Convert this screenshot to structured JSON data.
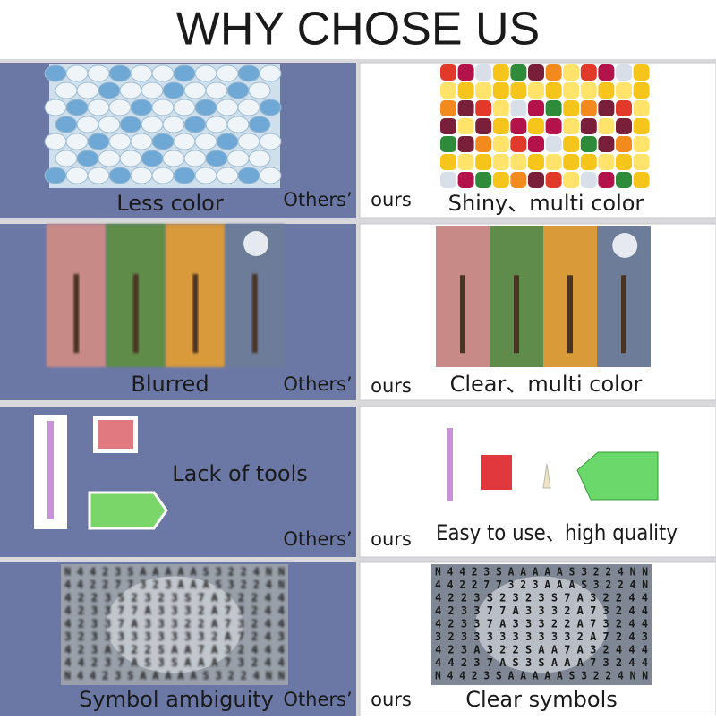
{
  "title": "WHY CHOSE US",
  "rows": [
    {
      "left_caption": "Less color",
      "others": "Others’",
      "ours": "ours",
      "right_caption": "Shiny、multi color"
    },
    {
      "left_caption": "Blurred",
      "others": "Others’",
      "ours": "ours",
      "right_caption": "Clear、multi color"
    },
    {
      "left_caption": "Lack of tools",
      "others": "Others’",
      "ours": "ours",
      "right_caption": "Easy to use、high quality"
    },
    {
      "left_caption": "Symbol ambiguity",
      "others": "Others’",
      "ours": "ours",
      "right_caption": "Clear symbols"
    }
  ],
  "symbol_rows": [
    "N 4 4 2 3 S A A A A A S 3 2 2 4 N N",
    "4 4 2 2 7 7 3 2 3 A A A S 3 2 2 4 N",
    "4 2 2 3 S 2 3 2 3 S 7 A 3 2 2 4 4",
    "4 2 3 3 7 7 A 3 3 3 2 A 7 3 2 4 4",
    "4 2 3 3 7 A 3 3 3 2 2 A 7 3 2 4 4",
    "3 2 3 3 3 3 3 3 3 3 3 2 A 7 2 4 3",
    "4 2 3 A 3 2 2 S A A 7 A 3 2 4 4 4",
    "4 4 2 3 7 A S 3 S A A A 7 3 2 4 4",
    "N 4 4 2 3 S A A A A A S 3 2 2 4 N N"
  ]
}
